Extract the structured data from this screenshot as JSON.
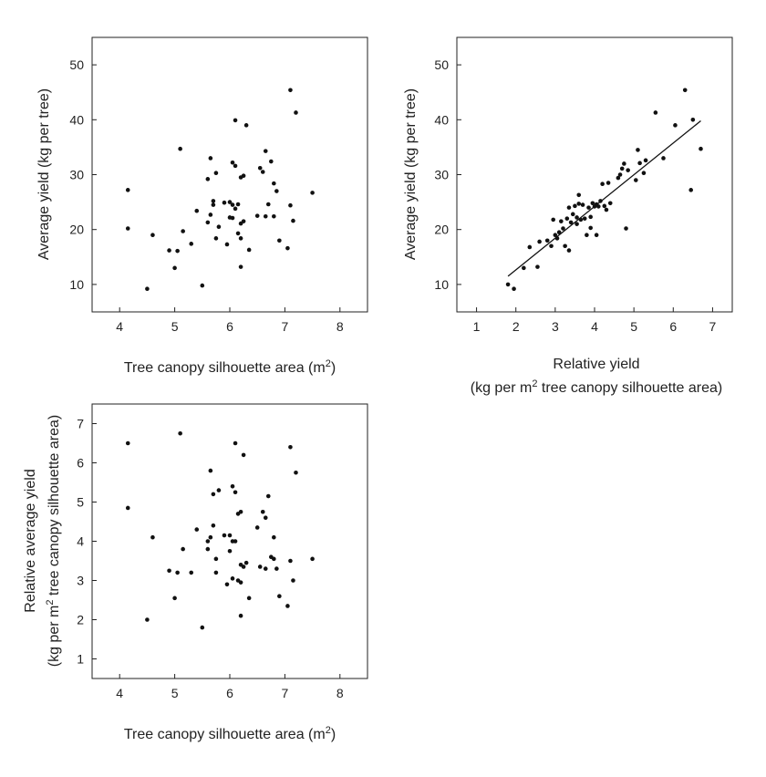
{
  "chart_data": [
    {
      "id": "panel-a",
      "type": "scatter",
      "xlabel": "Tree canopy silhouette area (m",
      "xlabel_sup": "2",
      "xlabel_close": ")",
      "ylabel": "Average yield (kg per tree)",
      "xlim": [
        3.5,
        8.5
      ],
      "ylim": [
        5,
        55
      ],
      "xticks": [
        4,
        5,
        6,
        7,
        8
      ],
      "yticks": [
        10,
        20,
        30,
        40,
        50
      ],
      "x": [
        4.15,
        4.15,
        4.5,
        4.6,
        4.9,
        5.0,
        5.05,
        5.1,
        5.15,
        5.3,
        5.4,
        5.5,
        5.6,
        5.6,
        5.65,
        5.65,
        5.7,
        5.7,
        5.75,
        5.75,
        5.8,
        5.9,
        5.95,
        6.0,
        6.0,
        6.05,
        6.05,
        6.05,
        6.1,
        6.1,
        6.1,
        6.15,
        6.15,
        6.2,
        6.2,
        6.2,
        6.2,
        6.25,
        6.25,
        6.3,
        6.35,
        6.5,
        6.55,
        6.6,
        6.65,
        6.65,
        6.7,
        6.75,
        6.8,
        6.8,
        6.85,
        6.9,
        7.05,
        7.1,
        7.1,
        7.15,
        7.2,
        7.5
      ],
      "y": [
        27.2,
        20.2,
        9.2,
        19.0,
        16.2,
        13.0,
        16.1,
        34.7,
        19.7,
        17.4,
        23.4,
        9.8,
        29.2,
        21.3,
        33.0,
        22.7,
        24.5,
        25.2,
        30.3,
        18.4,
        20.5,
        24.9,
        17.3,
        25.0,
        22.2,
        32.2,
        24.5,
        22.1,
        39.9,
        31.6,
        23.8,
        24.6,
        19.3,
        29.5,
        21.1,
        18.4,
        13.2,
        29.8,
        21.5,
        39.0,
        16.3,
        22.5,
        31.2,
        30.5,
        34.3,
        22.4,
        24.6,
        32.4,
        28.4,
        22.4,
        27.0,
        18.0,
        16.6,
        45.4,
        24.4,
        21.6,
        41.3,
        26.7
      ]
    },
    {
      "id": "panel-b",
      "type": "scatter",
      "xlabel": "Relative yield",
      "xlabel2": "(kg per m",
      "xlabel2_sup": "2",
      "xlabel2_rest": " tree canopy silhouette area)",
      "ylabel": "Average yield (kg per tree)",
      "xlim": [
        0.5,
        7.5
      ],
      "ylim": [
        5,
        55
      ],
      "xticks": [
        1,
        2,
        3,
        4,
        5,
        6,
        7
      ],
      "yticks": [
        10,
        20,
        30,
        40,
        50
      ],
      "fit_line": {
        "x": [
          1.8,
          6.7
        ],
        "y": [
          11.5,
          39.8
        ]
      },
      "x": [
        1.8,
        1.95,
        2.2,
        2.35,
        2.55,
        2.6,
        2.8,
        2.9,
        2.95,
        3.0,
        3.05,
        3.1,
        3.15,
        3.2,
        3.25,
        3.3,
        3.35,
        3.35,
        3.4,
        3.45,
        3.5,
        3.55,
        3.55,
        3.6,
        3.6,
        3.65,
        3.7,
        3.75,
        3.8,
        3.85,
        3.9,
        3.9,
        3.95,
        4.0,
        4.05,
        4.05,
        4.1,
        4.15,
        4.2,
        4.25,
        4.3,
        4.35,
        4.4,
        4.6,
        4.65,
        4.7,
        4.75,
        4.8,
        4.85,
        5.05,
        5.1,
        5.15,
        5.25,
        5.3,
        5.55,
        5.75,
        6.05,
        6.3,
        6.45,
        6.5,
        6.7
      ],
      "y": [
        10.0,
        9.2,
        13.0,
        16.8,
        13.2,
        17.8,
        18.0,
        17.0,
        21.8,
        19.0,
        18.4,
        19.5,
        21.5,
        20.2,
        17.0,
        22.0,
        16.2,
        24.0,
        21.3,
        22.8,
        24.3,
        22.2,
        21.0,
        26.3,
        24.7,
        21.8,
        24.5,
        22.0,
        19.0,
        24.0,
        22.3,
        20.3,
        24.8,
        24.2,
        24.6,
        19.0,
        24.2,
        25.2,
        28.3,
        24.3,
        23.6,
        28.5,
        24.8,
        29.4,
        30.0,
        31.1,
        32.0,
        20.2,
        30.8,
        29.0,
        34.5,
        32.1,
        30.3,
        32.6,
        41.3,
        33.0,
        39.0,
        45.4,
        27.2,
        40.0,
        34.7
      ]
    },
    {
      "id": "panel-c",
      "type": "scatter",
      "xlabel": "Tree canopy silhouette area (m",
      "xlabel_sup": "2",
      "xlabel_close": ")",
      "ylabel": "Relative average yield",
      "ylabel2": "(kg per m",
      "ylabel2_sup": "2",
      "ylabel2_rest": " tree canopy silhouette area)",
      "xlim": [
        3.5,
        8.5
      ],
      "ylim": [
        0.5,
        7.5
      ],
      "xticks": [
        4,
        5,
        6,
        7,
        8
      ],
      "yticks": [
        1,
        2,
        3,
        4,
        5,
        6,
        7
      ],
      "x": [
        4.15,
        4.15,
        4.5,
        4.6,
        4.9,
        5.0,
        5.05,
        5.1,
        5.15,
        5.3,
        5.4,
        5.5,
        5.6,
        5.6,
        5.65,
        5.65,
        5.7,
        5.7,
        5.75,
        5.75,
        5.8,
        5.9,
        5.95,
        6.0,
        6.0,
        6.05,
        6.05,
        6.05,
        6.1,
        6.1,
        6.1,
        6.15,
        6.15,
        6.2,
        6.2,
        6.2,
        6.2,
        6.25,
        6.25,
        6.3,
        6.35,
        6.5,
        6.55,
        6.6,
        6.65,
        6.65,
        6.7,
        6.75,
        6.8,
        6.8,
        6.85,
        6.9,
        7.05,
        7.1,
        7.1,
        7.15,
        7.2,
        7.5
      ],
      "y": [
        6.5,
        4.85,
        2.0,
        4.1,
        3.25,
        2.55,
        3.2,
        6.75,
        3.8,
        3.2,
        4.3,
        1.8,
        4.0,
        3.8,
        5.8,
        4.1,
        4.4,
        5.2,
        3.2,
        3.55,
        5.3,
        4.15,
        2.9,
        4.15,
        3.75,
        5.4,
        4.0,
        3.05,
        6.5,
        5.25,
        4.0,
        4.7,
        3.0,
        4.75,
        3.4,
        2.95,
        2.1,
        6.2,
        3.35,
        3.45,
        2.55,
        4.35,
        3.35,
        4.75,
        3.3,
        4.6,
        5.15,
        3.6,
        3.55,
        4.1,
        3.3,
        2.6,
        2.35,
        6.4,
        3.5,
        3.0,
        5.75,
        3.55
      ]
    }
  ]
}
